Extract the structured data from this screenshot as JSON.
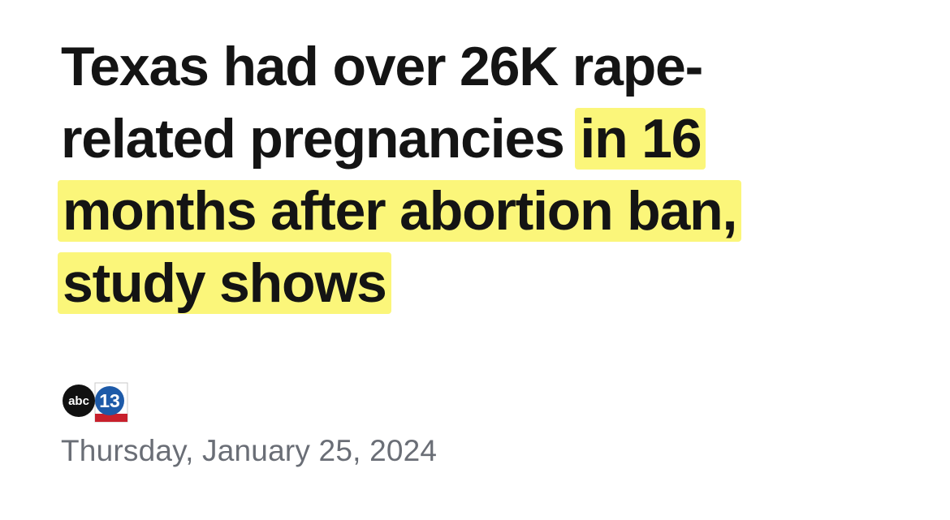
{
  "headline": {
    "lines": [
      {
        "text": "Texas had over 26K rape-"
      },
      {
        "text": "related pregnancies",
        "highlight": "in 16"
      },
      {
        "highlight": "months after abortion ban,"
      },
      {
        "highlight": "study shows"
      }
    ]
  },
  "source": {
    "logo_left": "abc",
    "logo_right": "13"
  },
  "date": "Thursday, January 25, 2024"
}
